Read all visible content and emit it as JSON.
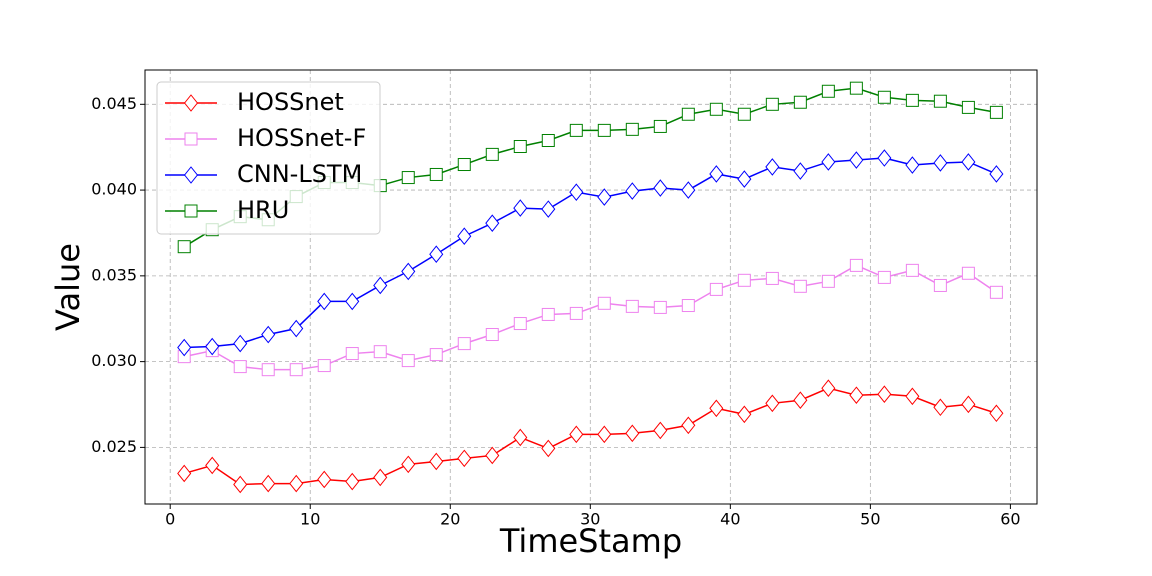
{
  "chart_data": {
    "type": "line",
    "xlabel": "TimeStamp",
    "ylabel": "Value",
    "x": [
      1,
      3,
      5,
      7,
      9,
      11,
      13,
      15,
      17,
      19,
      21,
      23,
      25,
      27,
      29,
      31,
      33,
      35,
      37,
      39,
      41,
      43,
      45,
      47,
      49,
      51,
      53,
      55,
      57,
      59
    ],
    "series": [
      {
        "name": "HOSSnet",
        "color": "#ff0000",
        "marker": "diamond",
        "values": [
          0.02348,
          0.02395,
          0.02284,
          0.02289,
          0.02289,
          0.02313,
          0.02301,
          0.02325,
          0.02401,
          0.02418,
          0.02436,
          0.02453,
          0.02558,
          0.02494,
          0.02576,
          0.02576,
          0.02582,
          0.02599,
          0.02629,
          0.02728,
          0.02693,
          0.02757,
          0.02775,
          0.02845,
          0.02804,
          0.0281,
          0.02798,
          0.02734,
          0.02751,
          0.02699
        ]
      },
      {
        "name": "HOSSnet-F",
        "color": "#ee82ee",
        "marker": "square",
        "values": [
          0.03029,
          0.03064,
          0.02971,
          0.02953,
          0.02953,
          0.02977,
          0.03047,
          0.03058,
          0.03006,
          0.03041,
          0.03105,
          0.03158,
          0.03222,
          0.03275,
          0.03281,
          0.0334,
          0.03322,
          0.03316,
          0.03327,
          0.03421,
          0.03474,
          0.03485,
          0.03439,
          0.03468,
          0.03561,
          0.03491,
          0.03532,
          0.03444,
          0.03515,
          0.03404
        ]
      },
      {
        "name": "CNN-LSTM",
        "color": "#0000ff",
        "marker": "diamond",
        "values": [
          0.03082,
          0.03088,
          0.03105,
          0.03158,
          0.03193,
          0.03351,
          0.03351,
          0.03444,
          0.03526,
          0.03626,
          0.03731,
          0.03807,
          0.03895,
          0.03889,
          0.03988,
          0.03959,
          0.03994,
          0.04012,
          0.04,
          0.04094,
          0.04064,
          0.04135,
          0.04111,
          0.04164,
          0.04175,
          0.04187,
          0.04146,
          0.04158,
          0.04164,
          0.04094
        ]
      },
      {
        "name": "HRU",
        "color": "#008000",
        "marker": "square",
        "values": [
          0.0367,
          0.03769,
          0.03845,
          0.03827,
          0.03962,
          0.04044,
          0.04044,
          0.04026,
          0.04073,
          0.04091,
          0.04149,
          0.04208,
          0.04254,
          0.04289,
          0.04348,
          0.04348,
          0.04354,
          0.04371,
          0.04442,
          0.04471,
          0.04442,
          0.045,
          0.04512,
          0.04576,
          0.04594,
          0.04541,
          0.04523,
          0.04518,
          0.04482,
          0.04453
        ]
      }
    ],
    "xlim": [
      -1.8,
      61.9
    ],
    "ylim": [
      0.0217,
      0.047
    ],
    "xticks": [
      0,
      10,
      20,
      30,
      40,
      50,
      60
    ],
    "yticks": [
      0.025,
      {
        "value": 0.03,
        "label": "0.030"
      },
      0.035,
      {
        "value": 0.04,
        "label": "0.040"
      },
      0.045
    ],
    "grid": true,
    "legend_loc": "upper left"
  }
}
